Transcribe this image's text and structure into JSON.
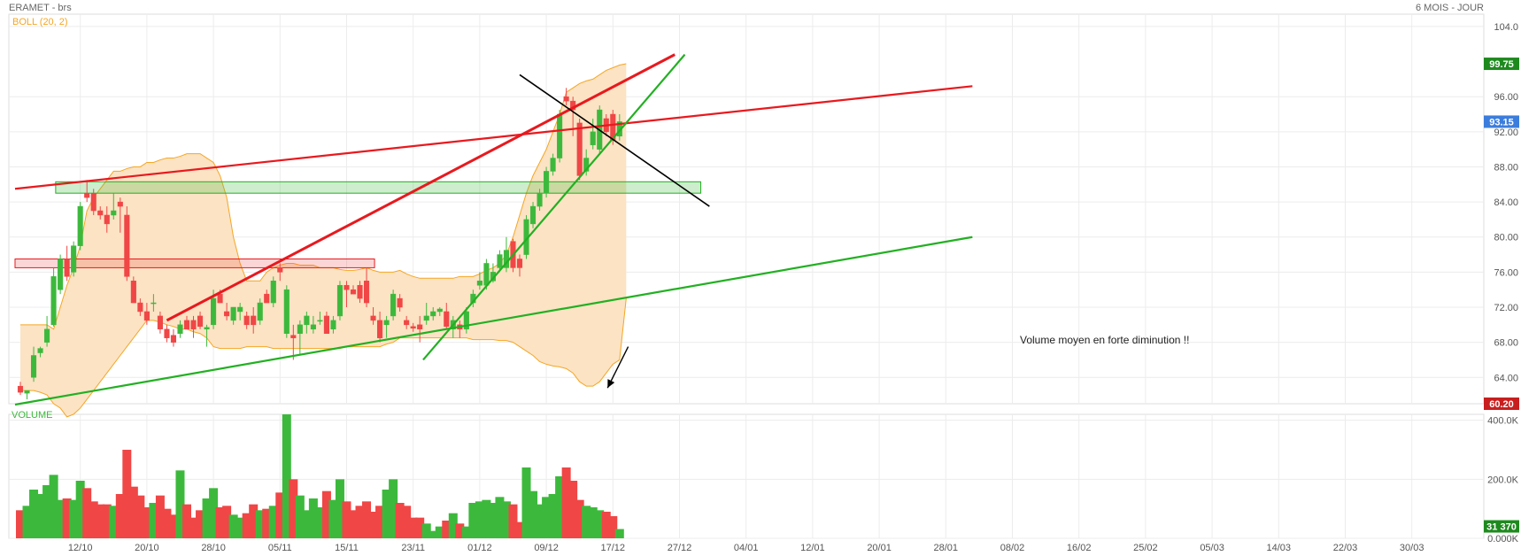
{
  "header": {
    "instrument": "ERAMET - brs",
    "period": "6 MOIS - JOUR",
    "indicator": "BOLL (20, 2)",
    "volume_label": "VOLUME"
  },
  "colors": {
    "up": "#3cb93c",
    "down": "#f04646",
    "band_fill": "#fbe3c4",
    "band_line": "#f5a623",
    "red_line": "#e8191e",
    "green_line": "#22b022",
    "black_line": "#000000",
    "tag_high": "#1e8a1e",
    "tag_last": "#3b7ddd",
    "tag_low": "#c81e1e"
  },
  "annotation": "Volume moyen en forte diminution !!",
  "chart_data": {
    "type": "candlestick",
    "price_axis": {
      "min": 61,
      "max": 104.8,
      "ticks": [
        "104.0",
        "96.00",
        "92.00",
        "88.00",
        "84.00",
        "80.00",
        "76.00",
        "72.00",
        "68.00",
        "64.00"
      ],
      "tick_values": [
        104,
        96,
        92,
        88,
        84,
        80,
        76,
        72,
        68,
        64
      ]
    },
    "volume_axis": {
      "max": 420000,
      "ticks": [
        "400.0K",
        "200.0K",
        "0.000K"
      ],
      "tick_values": [
        400000,
        200000,
        0
      ]
    },
    "x_ticks": [
      "12/10",
      "20/10",
      "28/10",
      "05/11",
      "15/11",
      "23/11",
      "01/12",
      "09/12",
      "17/12",
      "27/12",
      "04/01",
      "12/01",
      "20/01",
      "28/01",
      "08/02",
      "16/02",
      "25/02",
      "05/03",
      "14/03",
      "22/03",
      "30/03"
    ],
    "tags": {
      "high": "99.75",
      "last": "93.15",
      "low": "60.20",
      "last_volume": "31 370"
    },
    "candles": [
      {
        "o": 63,
        "h": 63.5,
        "l": 62,
        "c": 62.3,
        "v": 95000
      },
      {
        "o": 62.2,
        "h": 62.5,
        "l": 61.5,
        "c": 62.5,
        "v": 110000
      },
      {
        "o": 64,
        "h": 67.5,
        "l": 63.5,
        "c": 66.5,
        "v": 165000
      },
      {
        "o": 66.8,
        "h": 67.5,
        "l": 66.3,
        "c": 67.3,
        "v": 150000
      },
      {
        "o": 68,
        "h": 71,
        "l": 67.5,
        "c": 69.5,
        "v": 180000
      },
      {
        "o": 70,
        "h": 76.5,
        "l": 69.8,
        "c": 75.5,
        "v": 215000
      },
      {
        "o": 74,
        "h": 78,
        "l": 73.5,
        "c": 77.5,
        "v": 130000
      },
      {
        "o": 77.5,
        "h": 79,
        "l": 75,
        "c": 75.5,
        "v": 135000
      },
      {
        "o": 76,
        "h": 79.5,
        "l": 75.5,
        "c": 79,
        "v": 130000
      },
      {
        "o": 79,
        "h": 84,
        "l": 78.5,
        "c": 83.5,
        "v": 195000
      },
      {
        "o": 85,
        "h": 86.5,
        "l": 84,
        "c": 84.5,
        "v": 170000
      },
      {
        "o": 85,
        "h": 85.5,
        "l": 82.5,
        "c": 83,
        "v": 125000
      },
      {
        "o": 83,
        "h": 83.5,
        "l": 82,
        "c": 82.5,
        "v": 115000
      },
      {
        "o": 82.5,
        "h": 83.5,
        "l": 80.5,
        "c": 81.5,
        "v": 115000
      },
      {
        "o": 82.5,
        "h": 85,
        "l": 82,
        "c": 83,
        "v": 110000
      },
      {
        "o": 84,
        "h": 84.5,
        "l": 80.5,
        "c": 83.5,
        "v": 150000
      },
      {
        "o": 82.5,
        "h": 83.5,
        "l": 75,
        "c": 75.5,
        "v": 300000
      },
      {
        "o": 75,
        "h": 75.5,
        "l": 72.5,
        "c": 72.5,
        "v": 175000
      },
      {
        "o": 72.5,
        "h": 73,
        "l": 71,
        "c": 71.5,
        "v": 145000
      },
      {
        "o": 71.5,
        "h": 72.5,
        "l": 70,
        "c": 70.5,
        "v": 105000
      },
      {
        "o": 72.5,
        "h": 73.5,
        "l": 71.5,
        "c": 72.5,
        "v": 120000
      },
      {
        "o": 71,
        "h": 71.5,
        "l": 69,
        "c": 69.5,
        "v": 145000
      },
      {
        "o": 69.5,
        "h": 70,
        "l": 68,
        "c": 68.5,
        "v": 100000
      },
      {
        "o": 68.8,
        "h": 69.5,
        "l": 67.5,
        "c": 68,
        "v": 80000
      },
      {
        "o": 69,
        "h": 70.5,
        "l": 68.5,
        "c": 70,
        "v": 230000
      },
      {
        "o": 70.5,
        "h": 71,
        "l": 69.5,
        "c": 69.5,
        "v": 115000
      },
      {
        "o": 70.5,
        "h": 71,
        "l": 68.5,
        "c": 69.5,
        "v": 70000
      },
      {
        "o": 71,
        "h": 71.5,
        "l": 69.5,
        "c": 69.8,
        "v": 95000
      },
      {
        "o": 69.5,
        "h": 70,
        "l": 67.5,
        "c": 69.7,
        "v": 135000
      },
      {
        "o": 70,
        "h": 74,
        "l": 69.5,
        "c": 73,
        "v": 170000
      },
      {
        "o": 73.5,
        "h": 74,
        "l": 72.5,
        "c": 72.5,
        "v": 105000
      },
      {
        "o": 71.5,
        "h": 72.5,
        "l": 70.5,
        "c": 71,
        "v": 110000
      },
      {
        "o": 70.5,
        "h": 72,
        "l": 70,
        "c": 72,
        "v": 80000
      },
      {
        "o": 71.5,
        "h": 72.5,
        "l": 70.5,
        "c": 72,
        "v": 70000
      },
      {
        "o": 71,
        "h": 71.5,
        "l": 69.5,
        "c": 70,
        "v": 85000
      },
      {
        "o": 71,
        "h": 72,
        "l": 69,
        "c": 70,
        "v": 115000
      },
      {
        "o": 70.5,
        "h": 73,
        "l": 70,
        "c": 72.5,
        "v": 95000
      },
      {
        "o": 73.5,
        "h": 74,
        "l": 72.5,
        "c": 72.5,
        "v": 100000
      },
      {
        "o": 72.5,
        "h": 75.5,
        "l": 72,
        "c": 75,
        "v": 110000
      },
      {
        "o": 76.5,
        "h": 77,
        "l": 75,
        "c": 76,
        "v": 155000
      },
      {
        "o": 69,
        "h": 74.5,
        "l": 68.5,
        "c": 74,
        "v": 420000
      },
      {
        "o": 68.8,
        "h": 70,
        "l": 66,
        "c": 68.5,
        "v": 200000
      },
      {
        "o": 69,
        "h": 70.5,
        "l": 66.5,
        "c": 70,
        "v": 145000
      },
      {
        "o": 70,
        "h": 71.5,
        "l": 69,
        "c": 71,
        "v": 95000
      },
      {
        "o": 69.5,
        "h": 71,
        "l": 69,
        "c": 70,
        "v": 135000
      },
      {
        "o": 70.5,
        "h": 71.5,
        "l": 70,
        "c": 70.5,
        "v": 105000
      },
      {
        "o": 71,
        "h": 71.5,
        "l": 69,
        "c": 69,
        "v": 160000
      },
      {
        "o": 69.5,
        "h": 71,
        "l": 69,
        "c": 70.5,
        "v": 130000
      },
      {
        "o": 71,
        "h": 75,
        "l": 70.5,
        "c": 74.5,
        "v": 200000
      },
      {
        "o": 74.5,
        "h": 75,
        "l": 72,
        "c": 74,
        "v": 125000
      },
      {
        "o": 74,
        "h": 74.5,
        "l": 73.5,
        "c": 73.5,
        "v": 95000
      },
      {
        "o": 74.5,
        "h": 75,
        "l": 72.5,
        "c": 73,
        "v": 110000
      },
      {
        "o": 75,
        "h": 76.5,
        "l": 72,
        "c": 72.5,
        "v": 125000
      },
      {
        "o": 71,
        "h": 72,
        "l": 70,
        "c": 70.5,
        "v": 90000
      },
      {
        "o": 70.5,
        "h": 71.5,
        "l": 68,
        "c": 68.5,
        "v": 110000
      },
      {
        "o": 70,
        "h": 71,
        "l": 68.5,
        "c": 70.5,
        "v": 165000
      },
      {
        "o": 71,
        "h": 74,
        "l": 70.5,
        "c": 73.5,
        "v": 200000
      },
      {
        "o": 73,
        "h": 73.5,
        "l": 71.5,
        "c": 72,
        "v": 120000
      },
      {
        "o": 70.5,
        "h": 71,
        "l": 69.5,
        "c": 70,
        "v": 110000
      },
      {
        "o": 69.8,
        "h": 70.2,
        "l": 69.2,
        "c": 69.6,
        "v": 70000
      },
      {
        "o": 70,
        "h": 71,
        "l": 68,
        "c": 69.5,
        "v": 70000
      },
      {
        "o": 70.5,
        "h": 72.5,
        "l": 70,
        "c": 71,
        "v": 50000
      },
      {
        "o": 71,
        "h": 72,
        "l": 70.5,
        "c": 71.5,
        "v": 25000
      },
      {
        "o": 71.5,
        "h": 72,
        "l": 71,
        "c": 71.8,
        "v": 40000
      },
      {
        "o": 71.5,
        "h": 72.5,
        "l": 69.5,
        "c": 69.8,
        "v": 60000
      },
      {
        "o": 69.5,
        "h": 71,
        "l": 68.5,
        "c": 70.5,
        "v": 85000
      },
      {
        "o": 70,
        "h": 70.5,
        "l": 68.5,
        "c": 69.5,
        "v": 50000
      },
      {
        "o": 69.5,
        "h": 72,
        "l": 69,
        "c": 71.5,
        "v": 40000
      },
      {
        "o": 72.5,
        "h": 74,
        "l": 72,
        "c": 73.5,
        "v": 120000
      },
      {
        "o": 74.5,
        "h": 76,
        "l": 74,
        "c": 75,
        "v": 125000
      },
      {
        "o": 74.5,
        "h": 77.5,
        "l": 74,
        "c": 77,
        "v": 130000
      },
      {
        "o": 75,
        "h": 77,
        "l": 74.8,
        "c": 76,
        "v": 120000
      },
      {
        "o": 76.5,
        "h": 78.5,
        "l": 76,
        "c": 78,
        "v": 140000
      },
      {
        "o": 76.5,
        "h": 80,
        "l": 76,
        "c": 78.5,
        "v": 125000
      },
      {
        "o": 79.5,
        "h": 79.8,
        "l": 76,
        "c": 76.5,
        "v": 115000
      },
      {
        "o": 77.5,
        "h": 78,
        "l": 75.5,
        "c": 76.5,
        "v": 55000
      },
      {
        "o": 78,
        "h": 82.5,
        "l": 77.5,
        "c": 82,
        "v": 240000
      },
      {
        "o": 81.5,
        "h": 84,
        "l": 81,
        "c": 83.5,
        "v": 160000
      },
      {
        "o": 83.5,
        "h": 85.5,
        "l": 83,
        "c": 85,
        "v": 115000
      },
      {
        "o": 85,
        "h": 88,
        "l": 84.5,
        "c": 87.5,
        "v": 140000
      },
      {
        "o": 87.5,
        "h": 89.5,
        "l": 87,
        "c": 89,
        "v": 150000
      },
      {
        "o": 89,
        "h": 94.5,
        "l": 88.5,
        "c": 94,
        "v": 210000
      },
      {
        "o": 96,
        "h": 97,
        "l": 95,
        "c": 95.5,
        "v": 240000
      },
      {
        "o": 95.5,
        "h": 96,
        "l": 91.5,
        "c": 94.5,
        "v": 195000
      },
      {
        "o": 93,
        "h": 93.5,
        "l": 86.5,
        "c": 87,
        "v": 130000
      },
      {
        "o": 87.5,
        "h": 90,
        "l": 87,
        "c": 89,
        "v": 110000
      },
      {
        "o": 90.5,
        "h": 93.5,
        "l": 90,
        "c": 92,
        "v": 105000
      },
      {
        "o": 90,
        "h": 95,
        "l": 89.5,
        "c": 94.5,
        "v": 95000
      },
      {
        "o": 93.5,
        "h": 94,
        "l": 91.5,
        "c": 92,
        "v": 90000
      },
      {
        "o": 94,
        "h": 94.5,
        "l": 90.5,
        "c": 91,
        "v": 75000
      },
      {
        "o": 91.5,
        "h": 94,
        "l": 91,
        "c": 93.15,
        "v": 31370
      }
    ],
    "bollinger": {
      "upper": [
        70,
        70,
        70,
        70,
        70,
        69.5,
        72,
        74.5,
        76.5,
        79,
        83,
        84.5,
        85.5,
        86.5,
        87.5,
        87.5,
        87.8,
        88,
        88,
        88.5,
        88.5,
        88.8,
        89,
        89,
        89.2,
        89.5,
        89.5,
        89.5,
        89,
        88.5,
        87,
        84.5,
        80,
        77,
        75,
        75,
        75,
        76,
        76.5,
        76.8,
        77,
        77,
        76.8,
        76.8,
        76.8,
        76.5,
        76.5,
        76.5,
        76.3,
        76.2,
        76.2,
        76.3,
        76.5,
        76.2,
        76,
        76,
        76,
        76.2,
        75.8,
        75.5,
        75.3,
        75.3,
        75.3,
        75.3,
        75.3,
        75.3,
        75.5,
        75.5,
        75.5,
        75.8,
        76.2,
        76.5,
        77,
        78,
        80,
        82.5,
        85,
        87,
        88.5,
        90,
        92,
        94,
        96.5,
        97,
        97.5,
        97.8,
        98,
        98.5,
        99,
        99.3,
        99.6,
        99.75
      ],
      "lower": [
        62.5,
        62.5,
        62.5,
        62.3,
        62,
        61,
        60.5,
        59.5,
        59.8,
        60.5,
        61.5,
        62.5,
        63.5,
        64.5,
        65.5,
        66.5,
        67.5,
        68.5,
        69.5,
        70.5,
        70.5,
        70.3,
        70,
        69.8,
        69.5,
        69.5,
        69.2,
        69,
        68.5,
        67.5,
        67.3,
        67.3,
        67.3,
        67.3,
        67.5,
        67.5,
        67.5,
        67.5,
        67.3,
        67.3,
        67.3,
        67.3,
        67.3,
        67.3,
        67.3,
        67.3,
        67.3,
        67.3,
        67.3,
        67.5,
        67.5,
        67.5,
        67.5,
        67.5,
        67.5,
        67.8,
        68,
        68.5,
        68.5,
        68.5,
        68.5,
        68.5,
        68.5,
        68.5,
        68.5,
        68.5,
        68.5,
        68.5,
        68.3,
        68.3,
        68.3,
        68.3,
        68.2,
        68.2,
        68,
        67.5,
        67,
        66.5,
        65.8,
        65.5,
        65.3,
        65.2,
        65,
        64.5,
        63.5,
        63,
        63,
        63.5,
        64.5,
        65.5,
        66,
        73
      ]
    },
    "drawings": {
      "lines": [
        {
          "kind": "red",
          "x1": -0.8,
          "y1": 85.5,
          "x2": 143,
          "y2": 97.2
        },
        {
          "kind": "red",
          "x1": 22,
          "y1": 70.5,
          "x2": 98.3,
          "y2": 100.8
        },
        {
          "kind": "green",
          "x1": -0.8,
          "y1": 60.9,
          "x2": 143,
          "y2": 80
        },
        {
          "kind": "green",
          "x1": 60.5,
          "y1": 66,
          "x2": 99.8,
          "y2": 100.8
        },
        {
          "kind": "black",
          "x1": 75,
          "y1": 98.5,
          "x2": 103.5,
          "y2": 83.5
        }
      ],
      "zones": [
        {
          "kind": "green",
          "x1": 5.3,
          "x2": 102.2,
          "ymin": 85,
          "ymax": 86.3
        },
        {
          "kind": "red",
          "x1": -0.8,
          "x2": 53.2,
          "ymin": 76.5,
          "ymax": 77.5
        }
      ],
      "arrow": {
        "x1": 91.3,
        "y1": 67.5,
        "x2": 88.2,
        "y2": 62.8
      }
    }
  }
}
